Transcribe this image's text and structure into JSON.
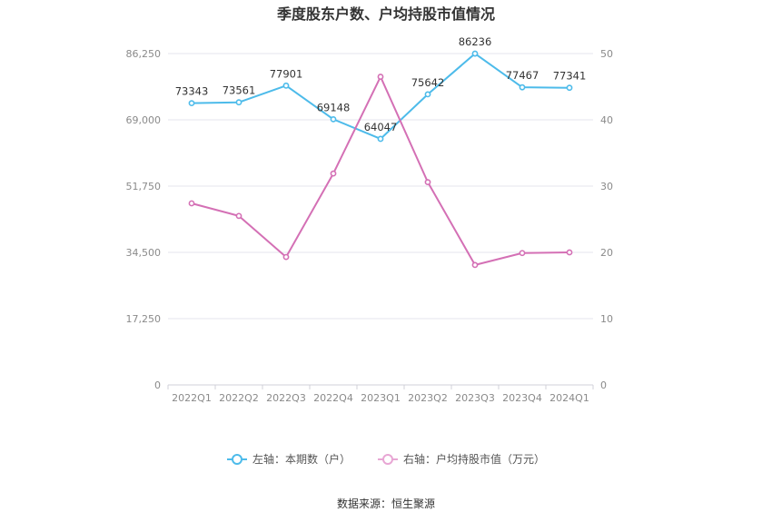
{
  "title": "季度股东户数、户均持股市值情况",
  "source": "数据来源：恒生聚源",
  "chart_data": {
    "type": "line",
    "title": "季度股东户数、户均持股市值情况",
    "categories": [
      "2022Q1",
      "2022Q2",
      "2022Q3",
      "2022Q4",
      "2023Q1",
      "2023Q2",
      "2023Q3",
      "2023Q4",
      "2024Q1"
    ],
    "left_axis": {
      "ylim": [
        0,
        86250
      ],
      "ticks": [
        "0",
        "17,250",
        "34,500",
        "51,750",
        "69,000",
        "86,250"
      ]
    },
    "right_axis": {
      "ylim": [
        0,
        50
      ],
      "ticks": [
        "0",
        "10",
        "20",
        "30",
        "40",
        "50"
      ]
    },
    "series": [
      {
        "name": "左轴：本期数（户）",
        "axis": "left",
        "color": "#4dbbea",
        "values": [
          73343,
          73561,
          77901,
          69148,
          64047,
          75642,
          86236,
          77467,
          77341
        ],
        "labels": [
          "73343",
          "73561",
          "77901",
          "69148",
          "64047",
          "75642",
          "86236",
          "77467",
          "77341"
        ]
      },
      {
        "name": "右轴：户均持股市值（万元）",
        "axis": "right",
        "color": "#d470b5",
        "values": [
          27.4,
          25.5,
          19.3,
          31.9,
          46.5,
          30.6,
          18.1,
          19.9,
          20.0
        ]
      }
    ],
    "grid": true,
    "legend_position": "bottom"
  }
}
